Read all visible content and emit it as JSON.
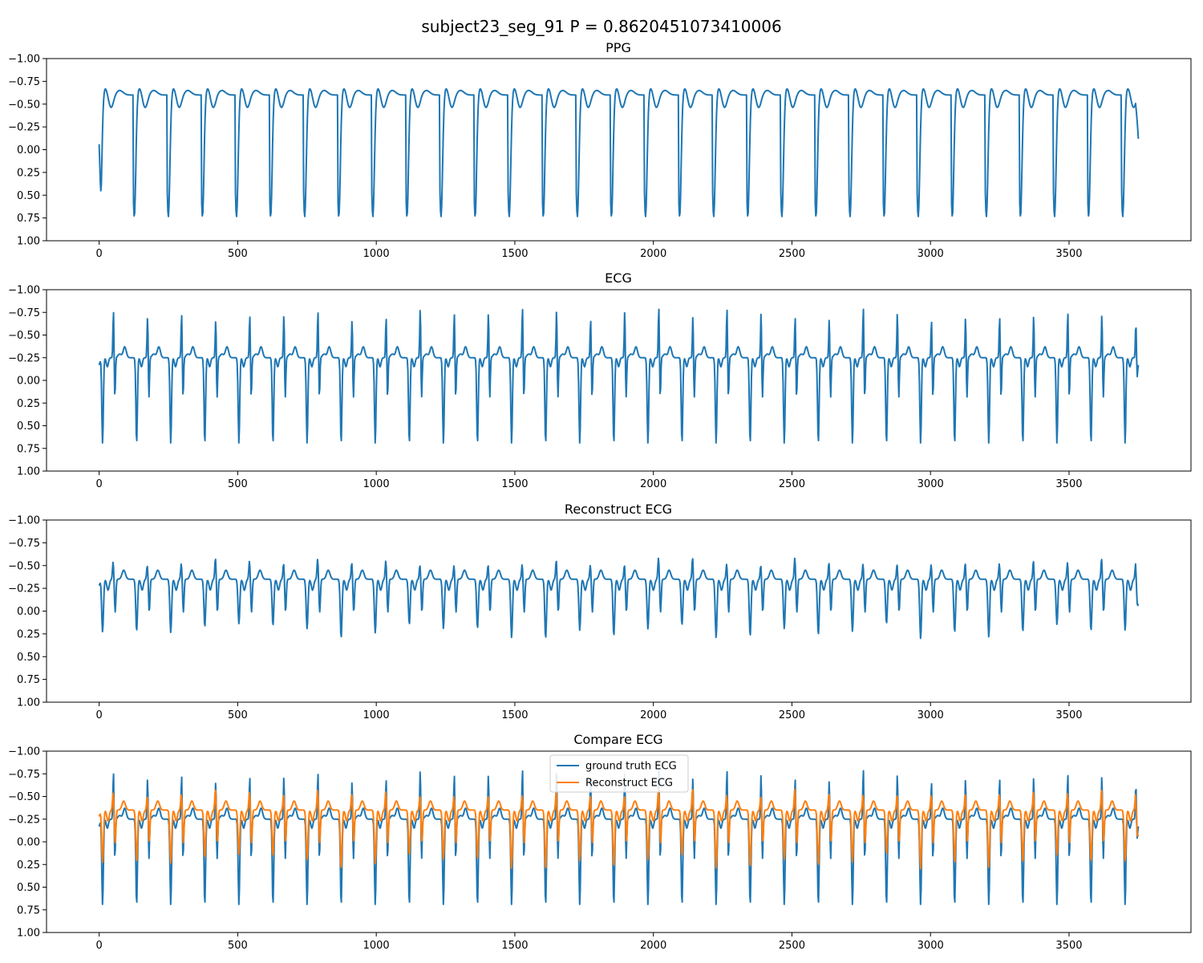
{
  "figure": {
    "suptitle": "subject23_seg_91 P = 0.8620451073410006"
  },
  "colors": {
    "ground_truth": "#1f77b4",
    "reconstruct": "#ff7f0e",
    "axes": "#000000",
    "background": "#ffffff"
  },
  "chart_data": [
    {
      "type": "line",
      "title": "PPG",
      "xlabel": "",
      "ylabel": "",
      "xlim": [
        -190,
        3940
      ],
      "ylim": [
        -1.0,
        1.0
      ],
      "y_inverted": true,
      "xticks": [
        0,
        500,
        1000,
        1500,
        2000,
        2500,
        3000,
        3500
      ],
      "xtick_labels": [
        "0",
        "500",
        "1000",
        "1500",
        "2000",
        "2500",
        "3000",
        "3500"
      ],
      "yticks": [
        -1.0,
        -0.75,
        -0.5,
        -0.25,
        0.0,
        0.25,
        0.5,
        0.75,
        1.0
      ],
      "ytick_labels": [
        "−1.00",
        "−0.75",
        "−0.50",
        "−0.25",
        "0.00",
        "0.25",
        "0.50",
        "0.75",
        "1.00"
      ],
      "grid": false,
      "series": [
        {
          "key": "ppg",
          "x_range": [
            0,
            3750
          ],
          "period": 123,
          "beats": 30,
          "shape": "ppg",
          "baseline": -0.6,
          "peak": -0.68,
          "trough": 0.74,
          "start_value": -0.06,
          "end_value": -0.12,
          "color": "#1f77b4"
        }
      ]
    },
    {
      "type": "line",
      "title": "ECG",
      "xlabel": "",
      "ylabel": "",
      "xlim": [
        -190,
        3940
      ],
      "ylim": [
        -1.0,
        1.0
      ],
      "y_inverted": true,
      "xticks": [
        0,
        500,
        1000,
        1500,
        2000,
        2500,
        3000,
        3500
      ],
      "xtick_labels": [
        "0",
        "500",
        "1000",
        "1500",
        "2000",
        "2500",
        "3000",
        "3500"
      ],
      "yticks": [
        -1.0,
        -0.75,
        -0.5,
        -0.25,
        0.0,
        0.25,
        0.5,
        0.75,
        1.0
      ],
      "ytick_labels": [
        "−1.00",
        "−0.75",
        "−0.50",
        "−0.25",
        "0.00",
        "0.25",
        "0.50",
        "0.75",
        "1.00"
      ],
      "grid": false,
      "series": [
        {
          "key": "ecg",
          "x_range": [
            0,
            3750
          ],
          "period": 123,
          "beats": 30,
          "shape": "ecg",
          "baseline": -0.25,
          "peak": -0.75,
          "trough": 0.9,
          "start_value": -0.17,
          "end_value": -0.17,
          "color": "#1f77b4"
        }
      ]
    },
    {
      "type": "line",
      "title": "Reconstruct ECG",
      "xlabel": "",
      "ylabel": "",
      "xlim": [
        -190,
        3940
      ],
      "ylim": [
        -1.0,
        1.0
      ],
      "y_inverted": true,
      "xticks": [
        0,
        500,
        1000,
        1500,
        2000,
        2500,
        3000,
        3500
      ],
      "xtick_labels": [
        "0",
        "500",
        "1000",
        "1500",
        "2000",
        "2500",
        "3000",
        "3500"
      ],
      "yticks": [
        -1.0,
        -0.75,
        -0.5,
        -0.25,
        0.0,
        0.25,
        0.5,
        0.75,
        1.0
      ],
      "ytick_labels": [
        "−1.00",
        "−0.75",
        "−0.50",
        "−0.25",
        "0.00",
        "0.25",
        "0.50",
        "0.75",
        "1.00"
      ],
      "grid": false,
      "series": [
        {
          "key": "recon",
          "x_range": [
            0,
            3750
          ],
          "period": 123,
          "beats": 30,
          "shape": "recon",
          "baseline": -0.35,
          "peak": -0.55,
          "trough": 0.42,
          "start_value": -0.28,
          "end_value": -0.08,
          "color": "#1f77b4"
        }
      ]
    },
    {
      "type": "line",
      "title": "Compare ECG",
      "xlabel": "",
      "ylabel": "",
      "xlim": [
        -190,
        3940
      ],
      "ylim": [
        -1.0,
        1.0
      ],
      "y_inverted": true,
      "xticks": [
        0,
        500,
        1000,
        1500,
        2000,
        2500,
        3000,
        3500
      ],
      "xtick_labels": [
        "0",
        "500",
        "1000",
        "1500",
        "2000",
        "2500",
        "3000",
        "3500"
      ],
      "yticks": [
        -1.0,
        -0.75,
        -0.5,
        -0.25,
        0.0,
        0.25,
        0.5,
        0.75,
        1.0
      ],
      "ytick_labels": [
        "−1.00",
        "−0.75",
        "−0.50",
        "−0.25",
        "0.00",
        "0.25",
        "0.50",
        "0.75",
        "1.00"
      ],
      "grid": false,
      "legend": "upper center",
      "series": [
        {
          "key": "ecg",
          "name": "ground truth ECG",
          "x_range": [
            0,
            3750
          ],
          "period": 123,
          "beats": 30,
          "shape": "ecg",
          "baseline": -0.25,
          "peak": -0.75,
          "trough": 0.9,
          "start_value": -0.17,
          "end_value": -0.17,
          "color": "#1f77b4"
        },
        {
          "key": "recon",
          "name": "Reconstruct ECG",
          "x_range": [
            0,
            3750
          ],
          "period": 123,
          "beats": 30,
          "shape": "recon",
          "baseline": -0.35,
          "peak": -0.55,
          "trough": 0.42,
          "start_value": -0.28,
          "end_value": -0.08,
          "color": "#ff7f0e"
        }
      ]
    }
  ]
}
